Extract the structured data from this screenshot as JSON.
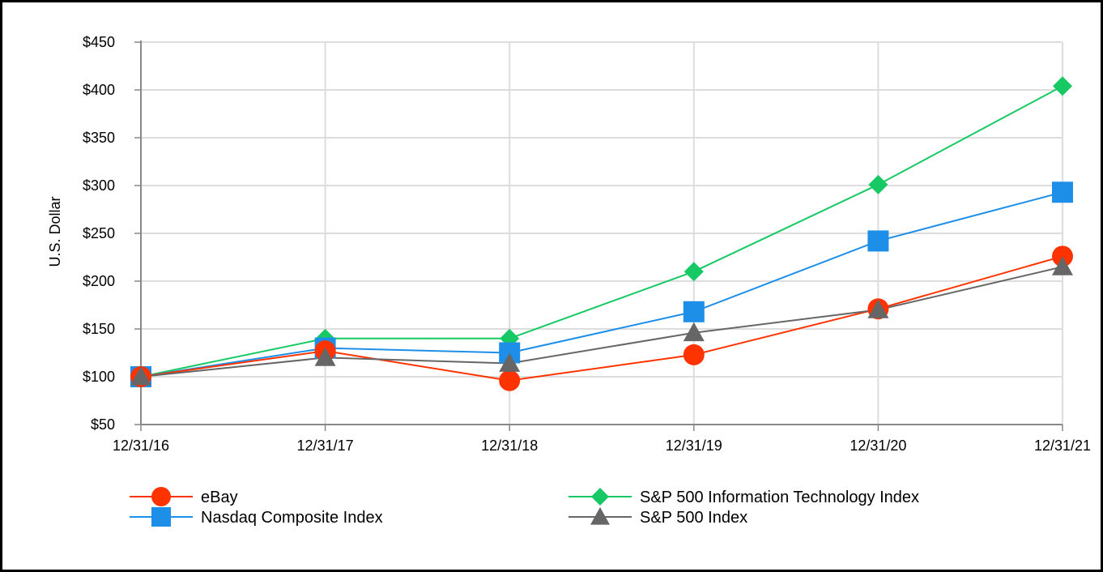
{
  "chart_data": {
    "type": "line",
    "title": "",
    "xlabel": "",
    "ylabel": "U.S. Dollar",
    "categories": [
      "12/31/16",
      "12/31/17",
      "12/31/18",
      "12/31/19",
      "12/31/20",
      "12/31/21"
    ],
    "yticks": [
      "$50",
      "$100",
      "$150",
      "$200",
      "$250",
      "$300",
      "$350",
      "$400",
      "$450"
    ],
    "ylim": [
      50,
      450
    ],
    "grid": true,
    "legend_position": "bottom",
    "series": [
      {
        "name": "eBay",
        "color": "#ff3300",
        "marker": "circle",
        "values": [
          100,
          127,
          96,
          123,
          171,
          226
        ]
      },
      {
        "name": "Nasdaq Composite Index",
        "color": "#1e8fe8",
        "marker": "square",
        "values": [
          100,
          130,
          125,
          168,
          242,
          293
        ]
      },
      {
        "name": "S&P 500 Information Technology Index",
        "color": "#17c964",
        "marker": "diamond",
        "values": [
          100,
          140,
          140,
          210,
          301,
          404
        ]
      },
      {
        "name": "S&P 500 Index",
        "color": "#666666",
        "marker": "triangle",
        "values": [
          100,
          120,
          114,
          146,
          170,
          215
        ]
      }
    ]
  }
}
